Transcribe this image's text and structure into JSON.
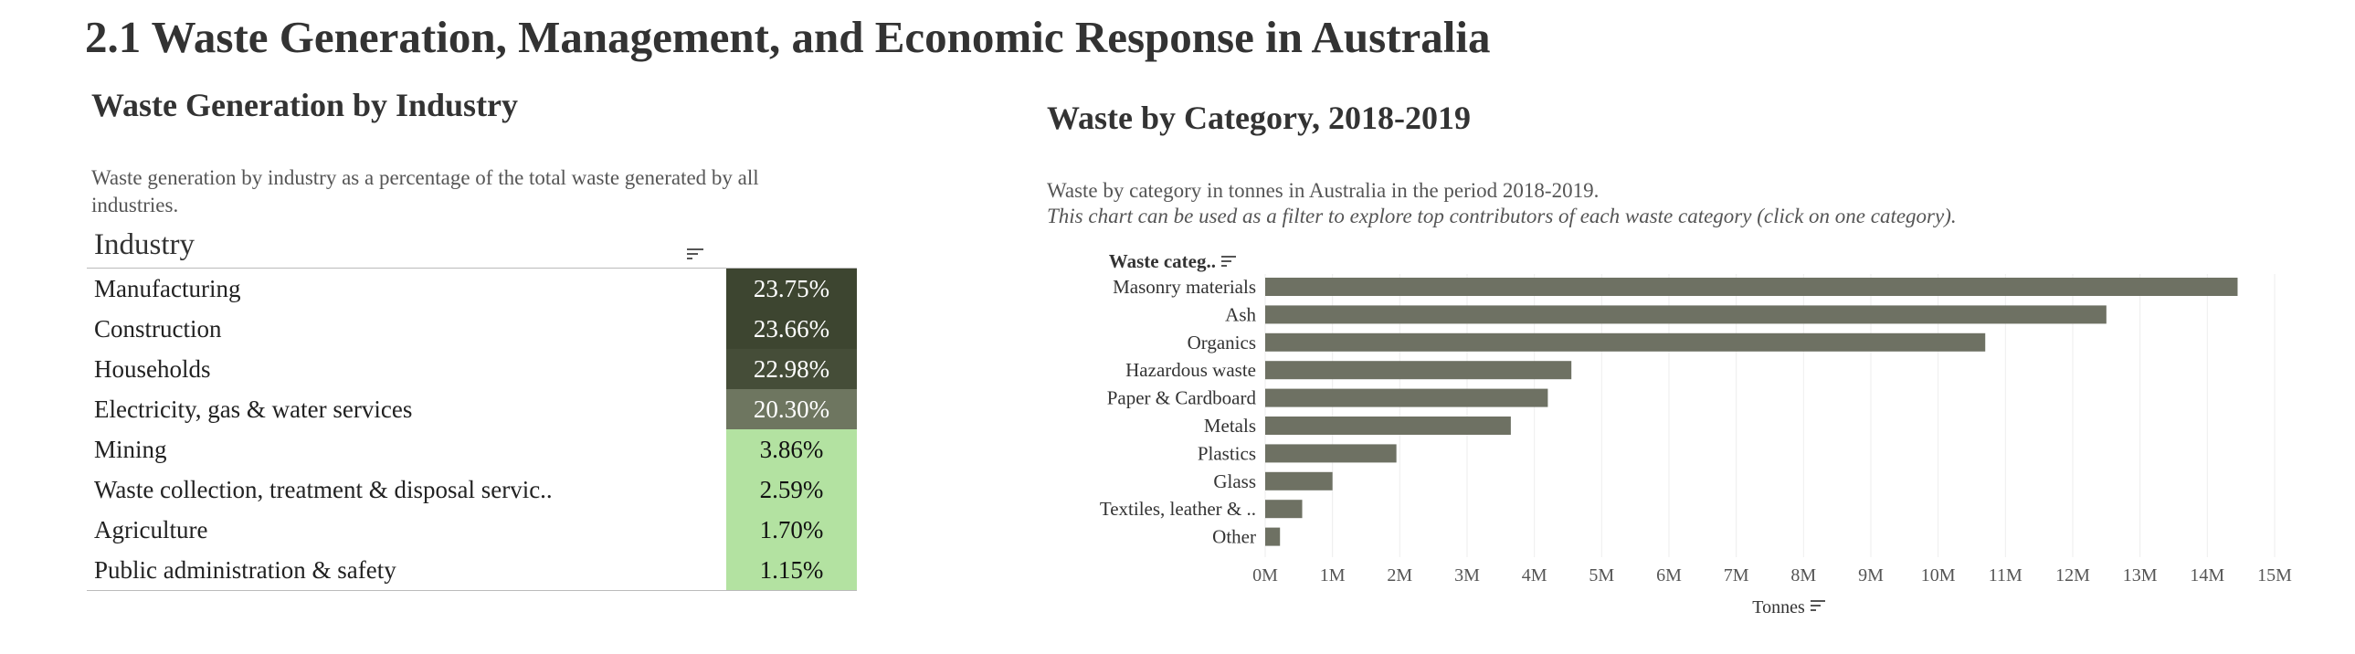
{
  "page": {
    "title": "2.1 Waste Generation, Management, and Economic Response in Australia"
  },
  "left_panel": {
    "title": "Waste Generation by Industry",
    "description": "Waste generation by industry as a percentage of the total waste generated by all industries.",
    "table": {
      "header": "Industry",
      "rows": [
        {
          "industry": "Manufacturing",
          "value": "23.75%",
          "bg": "#3d4530",
          "fg": "#ffffff"
        },
        {
          "industry": "Construction",
          "value": "23.66%",
          "bg": "#3d4530",
          "fg": "#ffffff"
        },
        {
          "industry": "Households",
          "value": "22.98%",
          "bg": "#454d38",
          "fg": "#ffffff"
        },
        {
          "industry": "Electricity, gas & water services",
          "value": "20.30%",
          "bg": "#6e7660",
          "fg": "#ffffff"
        },
        {
          "industry": "Mining",
          "value": "3.86%",
          "bg": "#b3e2a1",
          "fg": "#111111"
        },
        {
          "industry": "Waste collection, treatment & disposal servic..",
          "value": "2.59%",
          "bg": "#b3e2a1",
          "fg": "#111111"
        },
        {
          "industry": "Agriculture",
          "value": "1.70%",
          "bg": "#b3e2a1",
          "fg": "#111111"
        },
        {
          "industry": "Public administration & safety",
          "value": "1.15%",
          "bg": "#b3e2a1",
          "fg": "#111111"
        }
      ]
    }
  },
  "right_panel": {
    "title": "Waste by Category, 2018-2019",
    "description": "Waste by category in tonnes in Australia in the period 2018-2019.",
    "hint": "This chart can be used as a filter to explore top contributors of each waste category (click on one category)."
  },
  "chart_data": {
    "type": "bar",
    "orientation": "horizontal",
    "category_header": "Waste categ..",
    "categories": [
      "Masonry materials",
      "Ash",
      "Organics",
      "Hazardous waste",
      "Paper & Cardboard",
      "Metals",
      "Plastics",
      "Glass",
      "Textiles, leather & ..",
      "Other"
    ],
    "values": [
      14450000,
      12500000,
      10700000,
      4550000,
      4200000,
      3650000,
      1950000,
      1000000,
      550000,
      220000
    ],
    "xlabel": "Tonnes",
    "xlim": [
      0,
      15000000
    ],
    "ticks": [
      "0M",
      "1M",
      "2M",
      "3M",
      "4M",
      "5M",
      "6M",
      "7M",
      "8M",
      "9M",
      "10M",
      "11M",
      "12M",
      "13M",
      "14M",
      "15M"
    ],
    "bar_color": "#6e7163",
    "grid": true
  }
}
